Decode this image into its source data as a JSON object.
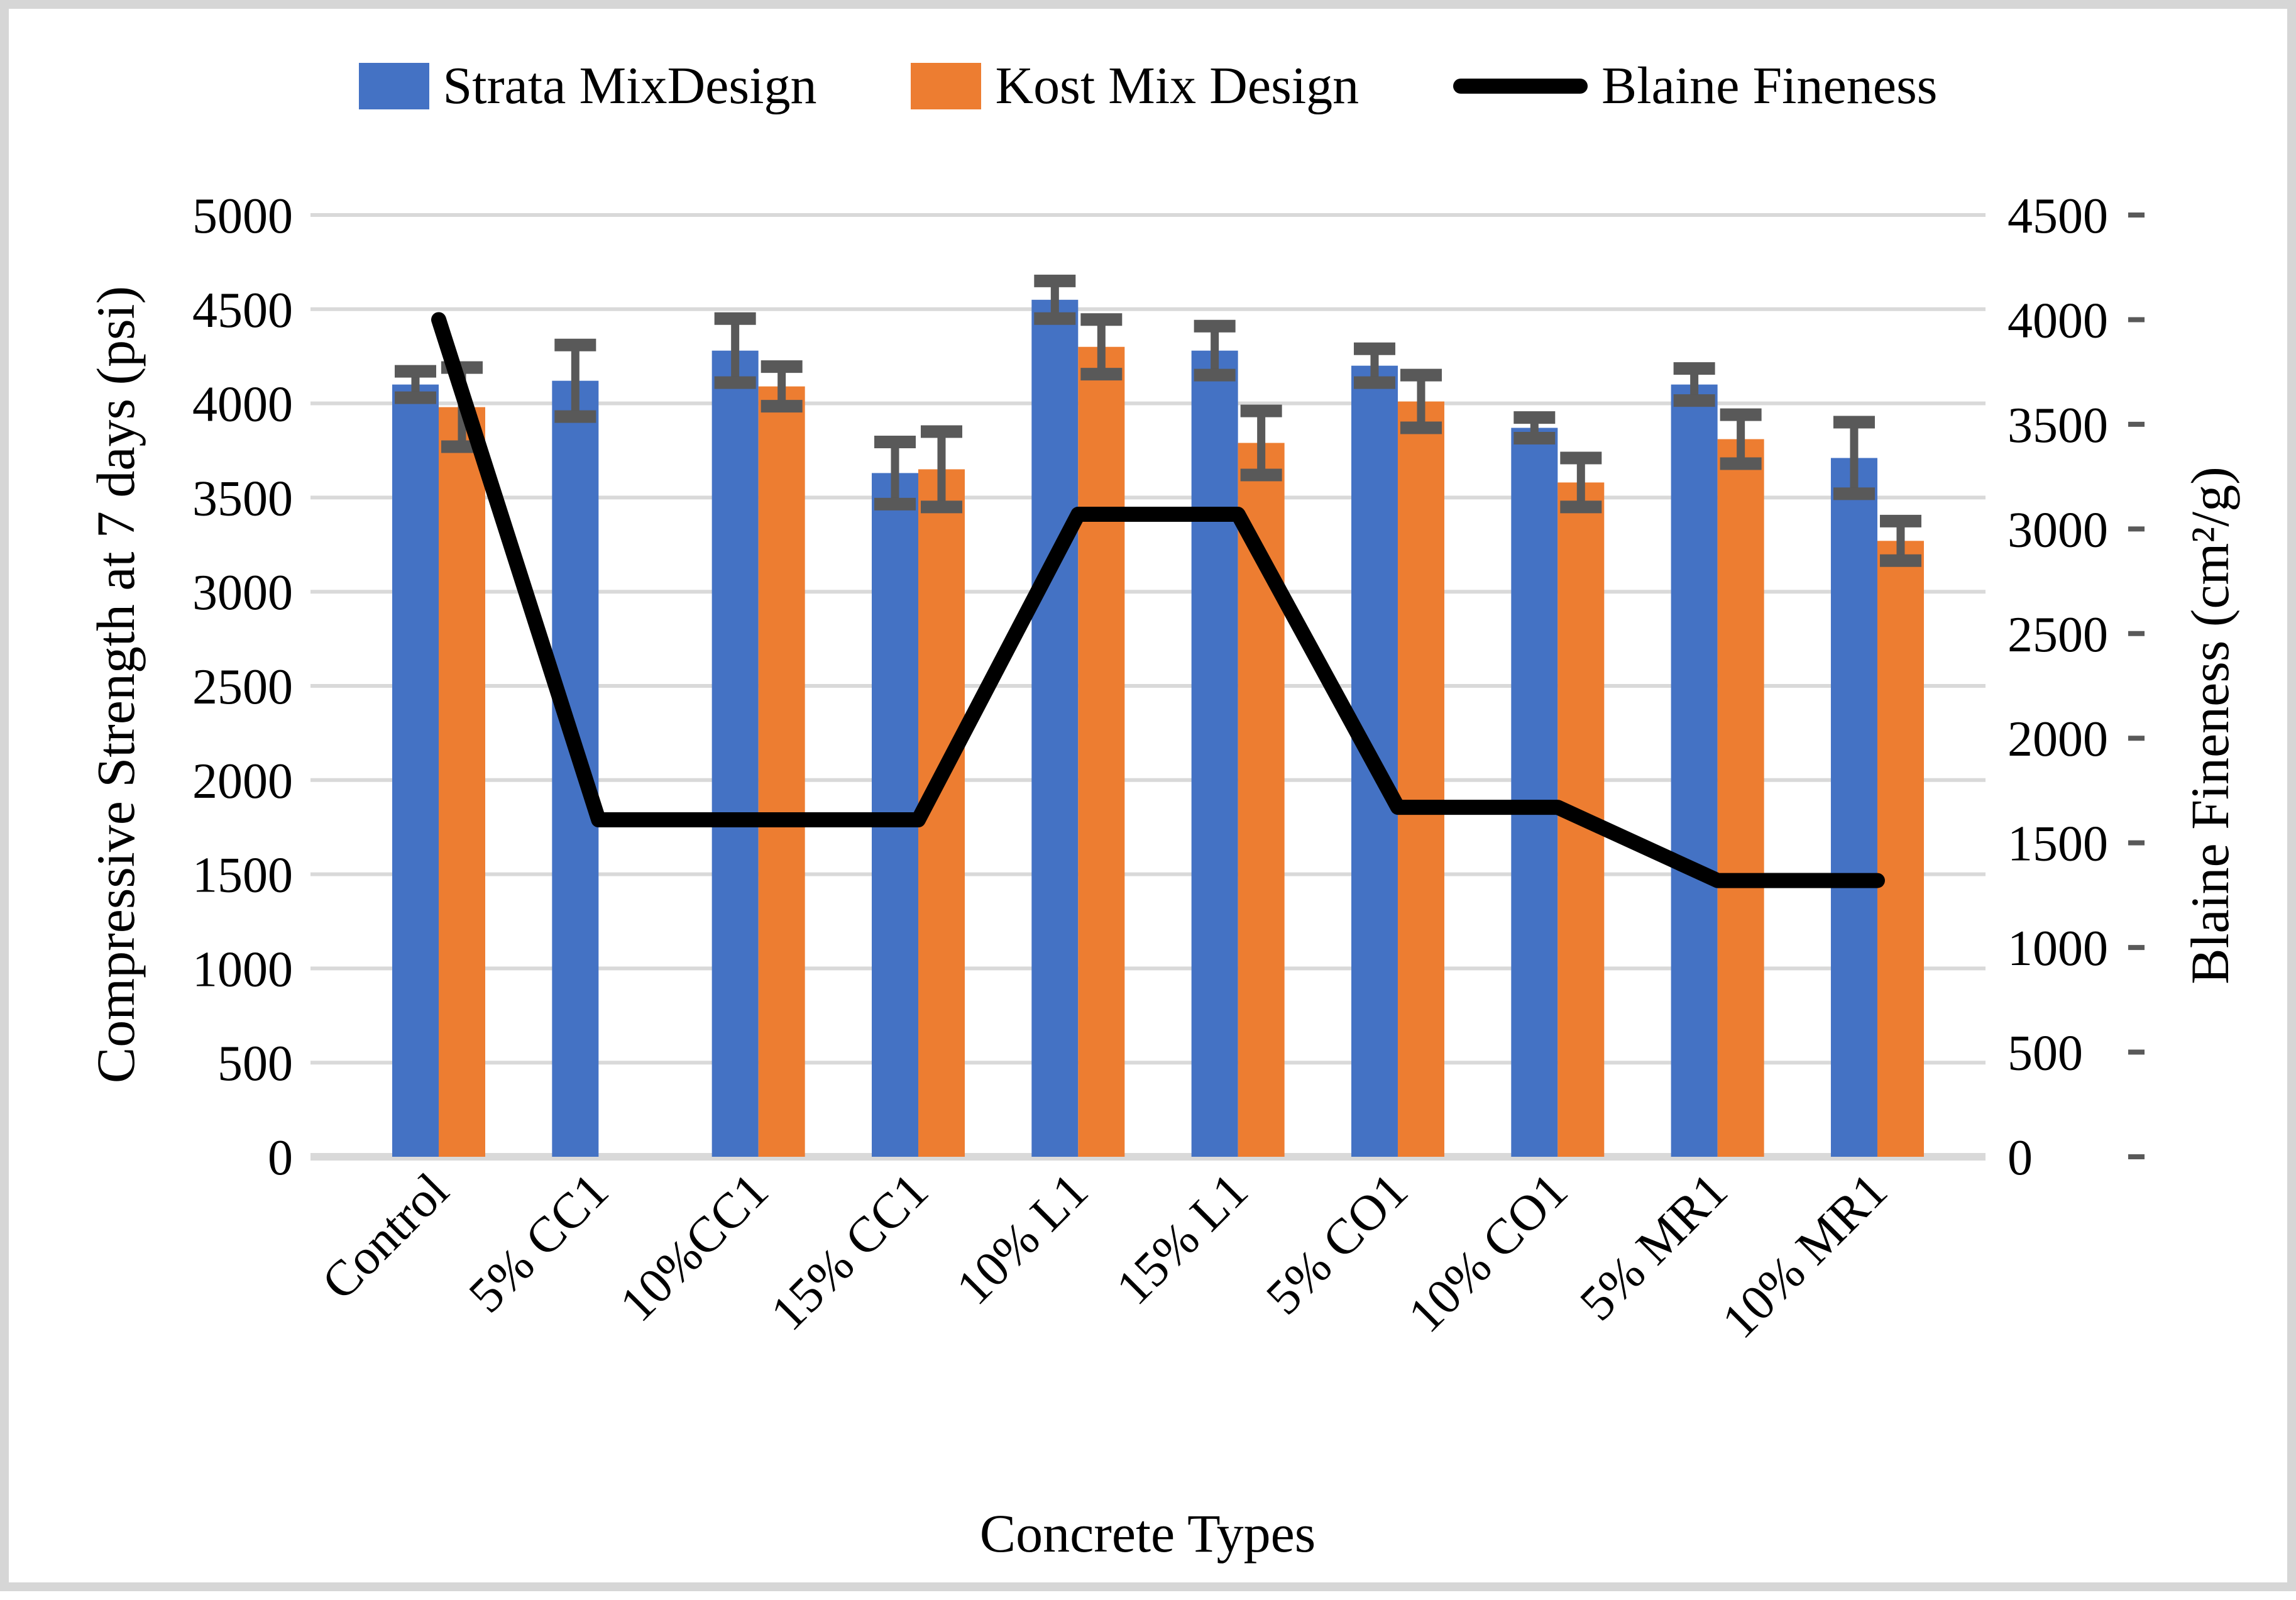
{
  "legend": {
    "items": [
      {
        "label": "Strata MixDesign",
        "swatch": "bar",
        "color": "#4472C4"
      },
      {
        "label": "Kost Mix Design",
        "swatch": "bar",
        "color": "#ED7D31"
      },
      {
        "label": "Blaine Fineness",
        "swatch": "line",
        "color": "#000000"
      }
    ]
  },
  "axes": {
    "left": {
      "title": "Compressive Strength at 7 days (psi)",
      "ticks": [
        "5000",
        "4500",
        "4000",
        "3500",
        "3000",
        "2500",
        "2000",
        "1500",
        "1000",
        "500",
        "0"
      ]
    },
    "right": {
      "title": "Blaine Fineness (cm²/g)",
      "ticks": [
        "4500",
        "4000",
        "3500",
        "3000",
        "2500",
        "2000",
        "1500",
        "1000",
        "500",
        "0"
      ]
    },
    "x": {
      "title": "Concrete Types"
    }
  },
  "chart_data": {
    "type": "combo-bar-line",
    "title": "",
    "xlabel": "Concrete Types",
    "ylabel": "Compressive Strength at 7 days (psi)",
    "y2label": "Blaine Fineness (cm²/g)",
    "ylim": [
      0,
      5000
    ],
    "y2lim": [
      0,
      4500
    ],
    "grid": true,
    "legend_position": "top",
    "categories": [
      "Control",
      "5% CC1",
      "10%CC1",
      "15% CC1",
      "10% L1",
      "15% L1",
      "5% CO1",
      "10% CO1",
      "5% MR1",
      "10% MR1"
    ],
    "series": [
      {
        "name": "Strata MixDesign",
        "type": "bar",
        "axis": "left",
        "color": "#4472C4",
        "values": [
          4100,
          4120,
          4280,
          3630,
          4550,
          4280,
          4200,
          3870,
          4100,
          3710
        ],
        "error": [
          70,
          190,
          170,
          165,
          100,
          130,
          90,
          55,
          85,
          190
        ]
      },
      {
        "name": "Kost Mix Design",
        "type": "bar",
        "axis": "left",
        "color": "#ED7D31",
        "values": [
          3980,
          null,
          4090,
          3650,
          4300,
          3790,
          4010,
          3580,
          3810,
          3270
        ],
        "error": [
          210,
          null,
          105,
          200,
          145,
          170,
          140,
          130,
          130,
          105
        ]
      },
      {
        "name": "Blaine Fineness",
        "type": "line",
        "axis": "right",
        "color": "#000000",
        "values": [
          4000,
          1610,
          1610,
          1610,
          3070,
          3070,
          1670,
          1670,
          1320,
          1320
        ]
      }
    ]
  },
  "colors": {
    "strata_blue": "#4472C4",
    "kost_orange": "#ED7D31",
    "line_black": "#000000",
    "error_bar": "#595959",
    "gridline": "#D9D9D9",
    "frame_border": "#D6D6D6"
  }
}
